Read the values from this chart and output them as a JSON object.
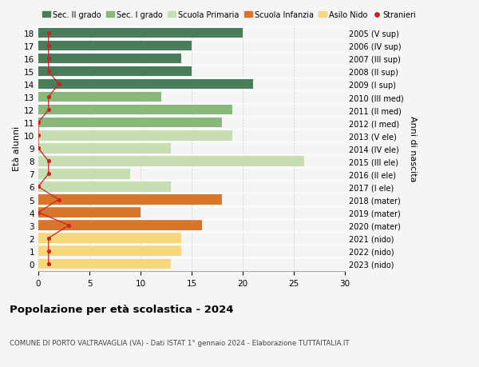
{
  "ages": [
    18,
    17,
    16,
    15,
    14,
    13,
    12,
    11,
    10,
    9,
    8,
    7,
    6,
    5,
    4,
    3,
    2,
    1,
    0
  ],
  "bar_values": [
    20,
    15,
    14,
    15,
    21,
    12,
    19,
    18,
    19,
    13,
    26,
    9,
    13,
    18,
    10,
    16,
    14,
    14,
    13
  ],
  "bar_colors": [
    "#4a7c59",
    "#4a7c59",
    "#4a7c59",
    "#4a7c59",
    "#4a7c59",
    "#8ab87a",
    "#8ab87a",
    "#8ab87a",
    "#c5ddb0",
    "#c5ddb0",
    "#c5ddb0",
    "#c5ddb0",
    "#c5ddb0",
    "#d9742b",
    "#d9742b",
    "#d9742b",
    "#f5d87a",
    "#f5d87a",
    "#f5d87a"
  ],
  "stranieri_values": [
    1,
    1,
    1,
    1,
    2,
    1,
    1,
    0,
    0,
    0,
    1,
    1,
    0,
    2,
    0,
    3,
    1,
    1,
    1
  ],
  "right_labels": [
    "2005 (V sup)",
    "2006 (IV sup)",
    "2007 (III sup)",
    "2008 (II sup)",
    "2009 (I sup)",
    "2010 (III med)",
    "2011 (II med)",
    "2012 (I med)",
    "2013 (V ele)",
    "2014 (IV ele)",
    "2015 (III ele)",
    "2016 (II ele)",
    "2017 (I ele)",
    "2018 (mater)",
    "2019 (mater)",
    "2020 (mater)",
    "2021 (nido)",
    "2022 (nido)",
    "2023 (nido)"
  ],
  "title": "Popolazione per età scolastica - 2024",
  "subtitle": "COMUNE DI PORTO VALTRAVAGLIA (VA) - Dati ISTAT 1° gennaio 2024 - Elaborazione TUTTAITALIA.IT",
  "ylabel_left": "Età alunni",
  "ylabel_right": "Anni di nascita",
  "xlim": [
    0,
    30
  ],
  "xticks": [
    0,
    5,
    10,
    15,
    20,
    25,
    30
  ],
  "legend_labels": [
    "Sec. II grado",
    "Sec. I grado",
    "Scuola Primaria",
    "Scuola Infanzia",
    "Asilo Nido",
    "Stranieri"
  ],
  "legend_colors": [
    "#4a7c59",
    "#8ab87a",
    "#c5ddb0",
    "#d9742b",
    "#f5d87a",
    "#cc2222"
  ],
  "stranieri_color": "#cc2222",
  "bar_height": 0.78,
  "bg_color": "#f5f5f5",
  "grid_color": "#cccccc"
}
